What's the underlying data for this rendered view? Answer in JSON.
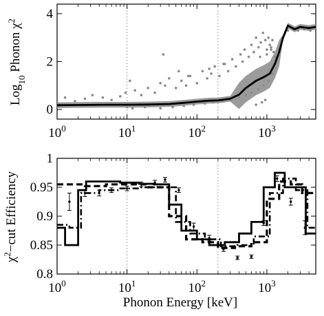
{
  "figure": {
    "top_ylabel_prefix": "Log",
    "top_ylabel_sub": "10",
    "top_ylabel_mid": " Phonon ",
    "top_ylabel_chi": "χ",
    "top_ylabel_sup": "2",
    "bottom_ylabel_chi": "χ",
    "bottom_ylabel_sup": "2",
    "bottom_ylabel_rest": "−cut Efficiency",
    "xlabel": "Phonon Energy [keV]"
  },
  "chart_data": [
    {
      "type": "scatter",
      "xscale": "log",
      "xlim": [
        1,
        5000
      ],
      "ylim": [
        -0.4,
        4.4
      ],
      "xticks": [
        1,
        10,
        100,
        1000
      ],
      "xtick_base": "10",
      "xtick_exponents": [
        "0",
        "1",
        "2",
        "3"
      ],
      "yticks": [
        0,
        2,
        4
      ],
      "ytick_labels": [
        "0",
        "2",
        "4"
      ],
      "vlines": [
        10,
        200
      ],
      "colors": {
        "points": "#8a8a8a",
        "line": "#000000",
        "vline": "#888888"
      },
      "series": [
        {
          "style": "solid-black-line",
          "x": [
            1,
            2,
            5,
            10,
            20,
            40,
            60,
            100,
            150,
            200,
            300,
            400,
            500,
            700,
            900,
            1100,
            1300,
            1500,
            1700,
            2000,
            2500,
            3000,
            4000,
            5000
          ],
          "y": [
            0.18,
            0.19,
            0.2,
            0.2,
            0.21,
            0.23,
            0.27,
            0.33,
            0.37,
            0.38,
            0.45,
            0.62,
            0.9,
            1.2,
            1.35,
            1.5,
            1.9,
            2.4,
            3.0,
            3.5,
            3.35,
            3.45,
            3.4,
            3.45
          ]
        },
        {
          "style": "gray-points",
          "x": [
            1.3,
            1.8,
            2.5,
            3.2,
            4.5,
            6,
            8,
            9.5,
            11,
            13,
            16,
            20,
            25,
            30,
            35,
            40,
            50,
            60,
            70,
            80,
            100,
            120,
            140,
            160,
            180,
            210,
            240,
            280,
            320,
            360,
            420,
            480,
            550,
            600,
            650,
            700,
            760,
            820,
            880,
            950,
            1000,
            1050,
            1100,
            1150,
            1200,
            1250,
            1300,
            10,
            12,
            18,
            30,
            45,
            65,
            90,
            130,
            170,
            230,
            300,
            400,
            500,
            600,
            750,
            900,
            1050,
            1200,
            1350,
            1500,
            1700,
            2000,
            2400,
            2800,
            3400,
            4200,
            33,
            55,
            75,
            150,
            250,
            450,
            800,
            1000,
            1150,
            700,
            850,
            950
          ],
          "y": [
            0.5,
            0.35,
            0.45,
            0.6,
            0.5,
            0.4,
            0.55,
            0.7,
            1.2,
            0.8,
            0.6,
            0.9,
            0.7,
            1.1,
            1.0,
            1.3,
            0.9,
            1.2,
            1.0,
            1.4,
            1.1,
            1.6,
            1.3,
            1.5,
            1.8,
            1.4,
            1.9,
            1.6,
            2.1,
            1.8,
            2.3,
            2.5,
            2.2,
            2.7,
            2.4,
            3.0,
            2.6,
            2.8,
            3.2,
            2.9,
            2.5,
            3.0,
            2.7,
            2.6,
            2.9,
            2.4,
            2.2,
            0.1,
            0.05,
            0.1,
            0.05,
            0.1,
            0.15,
            0.2,
            0.25,
            0.3,
            0.35,
            0.4,
            0.5,
            0.6,
            0.7,
            0.85,
            1.0,
            1.2,
            1.5,
            2.0,
            2.5,
            3.0,
            3.3,
            3.35,
            3.3,
            3.35,
            3.3,
            2.3,
            1.6,
            1.4,
            1.7,
            1.9,
            2.0,
            2.2,
            2.3,
            2.5,
            0.2,
            0.3,
            0.4
          ]
        }
      ]
    },
    {
      "type": "line",
      "xscale": "log",
      "xlim": [
        1,
        5000
      ],
      "ylim": [
        0.8,
        1.0
      ],
      "xticks": [
        1,
        10,
        100,
        1000
      ],
      "xtick_base": "10",
      "xtick_exponents": [
        "0",
        "1",
        "2",
        "3"
      ],
      "yticks": [
        0.8,
        0.85,
        0.9,
        0.95,
        1.0
      ],
      "ytick_labels": [
        "0.8",
        "0.85",
        "0.9",
        "0.95",
        "1"
      ],
      "vlines": [
        10,
        200
      ],
      "colors": {
        "line": "#000000",
        "vline": "#888888"
      },
      "series": [
        {
          "style": "solid-step",
          "edges": [
            1,
            1.3,
            2,
            2.6,
            4,
            8,
            15,
            25,
            40,
            60,
            100,
            150,
            250,
            400,
            600,
            900,
            1300,
            1800,
            2600,
            3600,
            5000
          ],
          "values": [
            0.88,
            0.85,
            0.945,
            0.96,
            0.96,
            0.958,
            0.956,
            0.955,
            0.92,
            0.875,
            0.86,
            0.85,
            0.855,
            0.87,
            0.89,
            0.95,
            0.975,
            0.95,
            0.95,
            0.87
          ]
        },
        {
          "style": "dashed-step",
          "edges": [
            1,
            1.6,
            2.5,
            5,
            10,
            20,
            40,
            70,
            120,
            200,
            350,
            600,
            1000,
            1500,
            2200,
            3200,
            5000
          ],
          "values": [
            0.955,
            0.955,
            0.952,
            0.955,
            0.955,
            0.95,
            0.9,
            0.86,
            0.855,
            0.845,
            0.848,
            0.855,
            0.93,
            0.96,
            0.955,
            0.94
          ]
        },
        {
          "style": "dashdot-step",
          "edges": [
            1,
            1.5,
            2.2,
            4,
            8,
            16,
            30,
            50,
            80,
            130,
            220,
            380,
            650,
            1100,
            1700,
            2600,
            3800,
            5000
          ],
          "values": [
            0.885,
            0.88,
            0.94,
            0.945,
            0.948,
            0.95,
            0.95,
            0.89,
            0.87,
            0.86,
            0.848,
            0.85,
            0.865,
            0.94,
            0.965,
            0.945,
            0.88
          ]
        },
        {
          "style": "points-errorbars",
          "x": [
            1.5,
            2.5,
            4,
            6,
            10,
            16,
            25,
            35,
            55,
            90,
            150,
            240,
            380,
            600,
            900,
            1400,
            2200,
            3500
          ],
          "y": [
            0.925,
            0.94,
            0.94,
            0.945,
            0.948,
            0.955,
            0.958,
            0.963,
            0.945,
            0.882,
            0.862,
            0.843,
            0.828,
            0.83,
            0.888,
            0.965,
            0.925,
            0.88
          ],
          "err": [
            0.015,
            0.006,
            0.005,
            0.004,
            0.004,
            0.004,
            0.004,
            0.004,
            0.004,
            0.006,
            0.005,
            0.004,
            0.003,
            0.003,
            0.004,
            0.005,
            0.006,
            0.012
          ]
        }
      ]
    }
  ]
}
